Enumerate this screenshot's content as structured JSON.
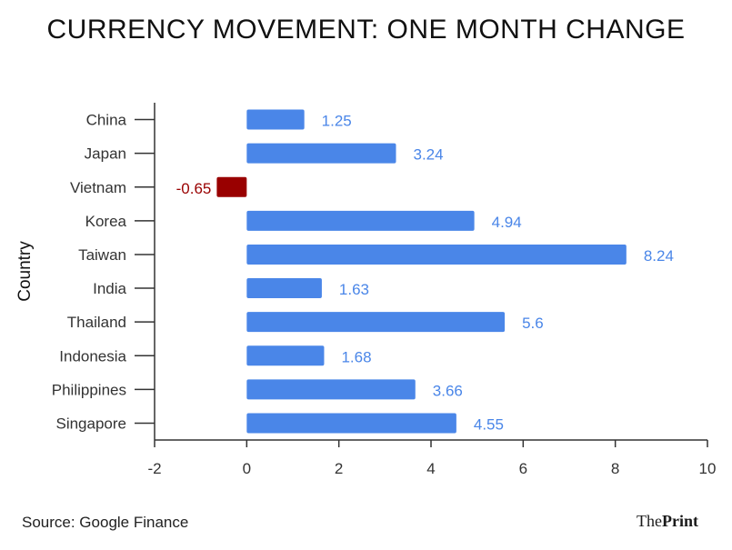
{
  "title": "CURRENCY MOVEMENT: ONE MONTH CHANGE",
  "source": "Source: Google Finance",
  "logo": {
    "prefix": "The",
    "suffix": "Print"
  },
  "colors": {
    "positive": "#4a86e8",
    "negative": "#990000",
    "axis": "#333333",
    "text": "#333333"
  },
  "chart_data": {
    "type": "bar",
    "orientation": "horizontal",
    "title": "CURRENCY MOVEMENT: ONE MONTH CHANGE",
    "xlabel": "",
    "ylabel": "Country",
    "categories": [
      "China",
      "Japan",
      "Vietnam",
      "Korea",
      "Taiwan",
      "India",
      "Thailand",
      "Indonesia",
      "Philippines",
      "Singapore"
    ],
    "values": [
      1.25,
      3.24,
      -0.65,
      4.94,
      8.24,
      1.63,
      5.6,
      1.68,
      3.66,
      4.55
    ],
    "value_labels": [
      "1.25",
      "3.24",
      "-0.65",
      "4.94",
      "8.24",
      "1.63",
      "5.6",
      "1.68",
      "3.66",
      "4.55"
    ],
    "xlim": [
      -2,
      10
    ],
    "xticks": [
      -2,
      0,
      2,
      4,
      6,
      8,
      10
    ],
    "grid": false,
    "legend": "none"
  }
}
